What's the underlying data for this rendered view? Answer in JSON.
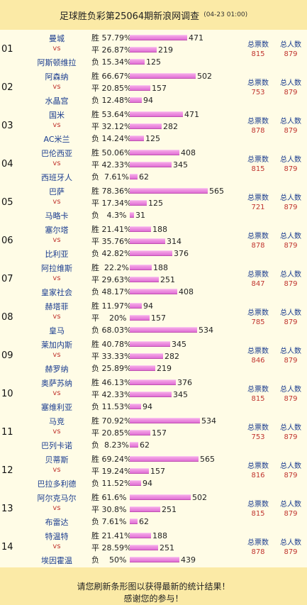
{
  "header": {
    "title": "足球胜负彩第25064期新浪网调查",
    "date": "(04-23 01:00)"
  },
  "labels": {
    "vs": "vs",
    "total_votes": "总票数",
    "total_people": "总人数"
  },
  "footer": {
    "line1": "请您刷新条形图以获得最新的统计结果！",
    "line2": "感谢您的参与！"
  },
  "bar_color": "#e070d6",
  "matches": [
    {
      "num": "01",
      "home": "曼城",
      "away": "阿斯顿维拉",
      "rows": [
        {
          "label": "胜 57.79%",
          "pct": 57.79,
          "count": "471"
        },
        {
          "label": "平 26.87%",
          "pct": 26.87,
          "count": "219"
        },
        {
          "label": "负 15.34%",
          "pct": 15.34,
          "count": "125"
        }
      ],
      "total_votes": "815",
      "total_people": "879"
    },
    {
      "num": "02",
      "home": "阿森纳",
      "away": "水晶宫",
      "rows": [
        {
          "label": "胜 66.67%",
          "pct": 66.67,
          "count": "502"
        },
        {
          "label": "平 20.85%",
          "pct": 20.85,
          "count": "157"
        },
        {
          "label": "负 12.48%",
          "pct": 12.48,
          "count": "94"
        }
      ],
      "total_votes": "753",
      "total_people": "879"
    },
    {
      "num": "03",
      "home": "国米",
      "away": "AC米兰",
      "rows": [
        {
          "label": "胜 53.64%",
          "pct": 53.64,
          "count": "471"
        },
        {
          "label": "平 32.12%",
          "pct": 32.12,
          "count": "282"
        },
        {
          "label": "负 14.24%",
          "pct": 14.24,
          "count": "125"
        }
      ],
      "total_votes": "878",
      "total_people": "879"
    },
    {
      "num": "04",
      "home": "巴伦西亚",
      "away": "西班牙人",
      "rows": [
        {
          "label": "胜 50.06%",
          "pct": 50.06,
          "count": "408"
        },
        {
          "label": "平 42.33%",
          "pct": 42.33,
          "count": "345"
        },
        {
          "label": "负  7.61%",
          "pct": 7.61,
          "count": "62"
        }
      ],
      "total_votes": "815",
      "total_people": "879"
    },
    {
      "num": "05",
      "home": "巴萨",
      "away": "马略卡",
      "rows": [
        {
          "label": "胜 78.36%",
          "pct": 78.36,
          "count": "565"
        },
        {
          "label": "平 17.34%",
          "pct": 17.34,
          "count": "125"
        },
        {
          "label": "负   4.3%",
          "pct": 4.3,
          "count": "31"
        }
      ],
      "total_votes": "721",
      "total_people": "879"
    },
    {
      "num": "06",
      "home": "塞尔塔",
      "away": "比利亚",
      "rows": [
        {
          "label": "胜 21.41%",
          "pct": 21.41,
          "count": "188"
        },
        {
          "label": "平 35.76%",
          "pct": 35.76,
          "count": "314"
        },
        {
          "label": "负 42.82%",
          "pct": 42.82,
          "count": "376"
        }
      ],
      "total_votes": "878",
      "total_people": "879"
    },
    {
      "num": "07",
      "home": "阿拉维斯",
      "away": "皇家社会",
      "rows": [
        {
          "label": "胜  22.2%",
          "pct": 22.2,
          "count": "188"
        },
        {
          "label": "平 29.63%",
          "pct": 29.63,
          "count": "251"
        },
        {
          "label": "负 48.17%",
          "pct": 48.17,
          "count": "408"
        }
      ],
      "total_votes": "847",
      "total_people": "879"
    },
    {
      "num": "08",
      "home": "赫塔菲",
      "away": "皇马",
      "rows": [
        {
          "label": "胜 11.97%",
          "pct": 11.97,
          "count": "94"
        },
        {
          "label": "平    20%",
          "pct": 20,
          "count": "157"
        },
        {
          "label": "负 68.03%",
          "pct": 68.03,
          "count": "534"
        }
      ],
      "total_votes": "785",
      "total_people": "879"
    },
    {
      "num": "09",
      "home": "莱加内斯",
      "away": "赫罗纳",
      "rows": [
        {
          "label": "胜 40.78%",
          "pct": 40.78,
          "count": "345"
        },
        {
          "label": "平 33.33%",
          "pct": 33.33,
          "count": "282"
        },
        {
          "label": "负 25.89%",
          "pct": 25.89,
          "count": "219"
        }
      ],
      "total_votes": "846",
      "total_people": "879"
    },
    {
      "num": "10",
      "home": "奥萨苏纳",
      "away": "塞维利亚",
      "rows": [
        {
          "label": "胜 46.13%",
          "pct": 46.13,
          "count": "376"
        },
        {
          "label": "平 42.33%",
          "pct": 42.33,
          "count": "345"
        },
        {
          "label": "负 11.53%",
          "pct": 11.53,
          "count": "94"
        }
      ],
      "total_votes": "815",
      "total_people": "879"
    },
    {
      "num": "11",
      "home": "马竞",
      "away": "巴列卡诺",
      "rows": [
        {
          "label": "胜 70.92%",
          "pct": 70.92,
          "count": "534"
        },
        {
          "label": "平 20.85%",
          "pct": 20.85,
          "count": "157"
        },
        {
          "label": "负  8.23%",
          "pct": 8.23,
          "count": "62"
        }
      ],
      "total_votes": "753",
      "total_people": "879"
    },
    {
      "num": "12",
      "home": "贝蒂斯",
      "away": "巴拉多利德",
      "rows": [
        {
          "label": "胜 69.24%",
          "pct": 69.24,
          "count": "565"
        },
        {
          "label": "平 19.24%",
          "pct": 19.24,
          "count": "157"
        },
        {
          "label": "负 11.52%",
          "pct": 11.52,
          "count": "94"
        }
      ],
      "total_votes": "816",
      "total_people": "879"
    },
    {
      "num": "13",
      "home": "阿尔克马尔",
      "away": "布雷达",
      "rows": [
        {
          "label": "胜 61.6%",
          "pct": 61.6,
          "count": "502"
        },
        {
          "label": "平 30.8%",
          "pct": 30.8,
          "count": "251"
        },
        {
          "label": "负 7.61%",
          "pct": 7.61,
          "count": "62"
        }
      ],
      "total_votes": "815",
      "total_people": "879"
    },
    {
      "num": "14",
      "home": "特温特",
      "away": "埃因霍温",
      "rows": [
        {
          "label": "胜 21.41%",
          "pct": 21.41,
          "count": "188"
        },
        {
          "label": "平 28.59%",
          "pct": 28.59,
          "count": "251"
        },
        {
          "label": "负    50%",
          "pct": 50,
          "count": "439"
        }
      ],
      "total_votes": "878",
      "total_people": "879"
    }
  ]
}
